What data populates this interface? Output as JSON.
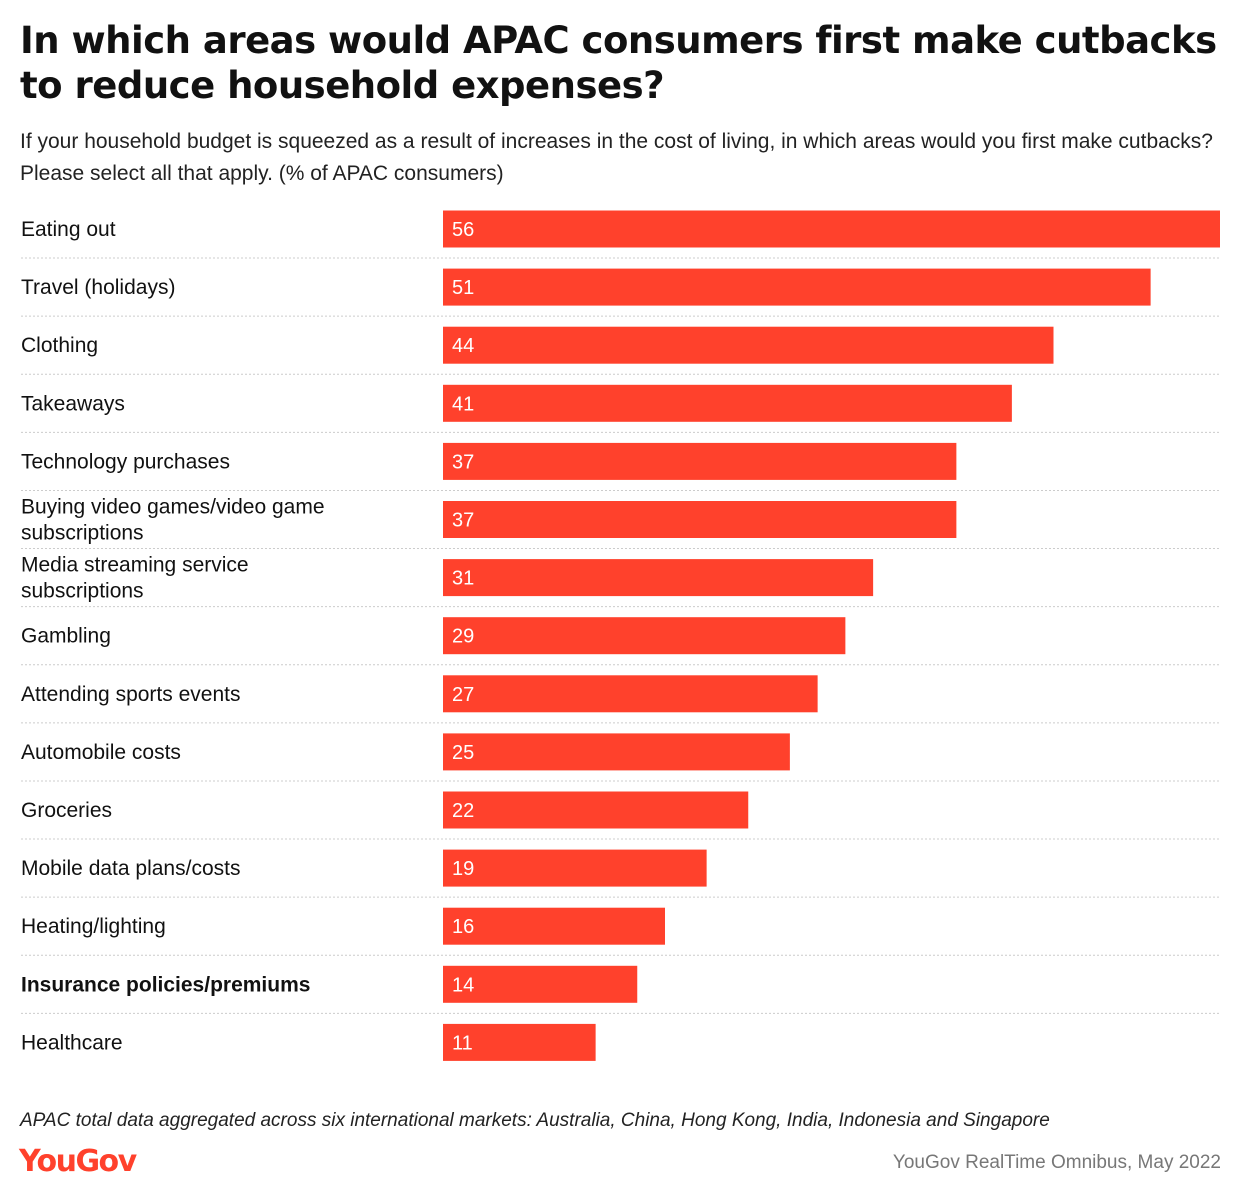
{
  "header": {
    "title": "In which areas would APAC consumers first make cutbacks to reduce household expenses?",
    "subtitle": "If your household budget is squeezed as a result of increases in the cost of living, in which areas would you first make cutbacks? Please select all that apply. (% of APAC consumers)"
  },
  "colors": {
    "bar": "#FF412C",
    "bar_label": "#FFFFFF",
    "divider": "#CCCCCC",
    "logo": "#FF412C",
    "source_text": "#777777"
  },
  "chart_data": {
    "type": "bar",
    "orientation": "horizontal",
    "title": "In which areas would APAC consumers first make cutbacks to reduce household expenses?",
    "categories": [
      "Eating out",
      "Travel (holidays)",
      "Clothing",
      "Takeaways",
      "Technology purchases",
      "Buying video games/video game subscriptions",
      "Media streaming service subscriptions",
      "Gambling",
      "Attending sports events",
      "Automobile costs",
      "Groceries",
      "Mobile data plans/costs",
      "Heating/lighting",
      "Insurance policies/premiums",
      "Healthcare"
    ],
    "values": [
      56,
      51,
      44,
      41,
      37,
      37,
      31,
      29,
      27,
      25,
      22,
      19,
      16,
      14,
      11
    ],
    "highlighted_category": "Insurance policies/premiums",
    "xlim": [
      0,
      56
    ],
    "grid": false,
    "legend": "none",
    "data_labels": "inside-left"
  },
  "footer": {
    "note": "APAC total data aggregated across six international markets: Australia, China, Hong Kong, India, Indonesia and Singapore",
    "logo_text": "YouGov",
    "source": "YouGov RealTime Omnibus, May 2022"
  }
}
